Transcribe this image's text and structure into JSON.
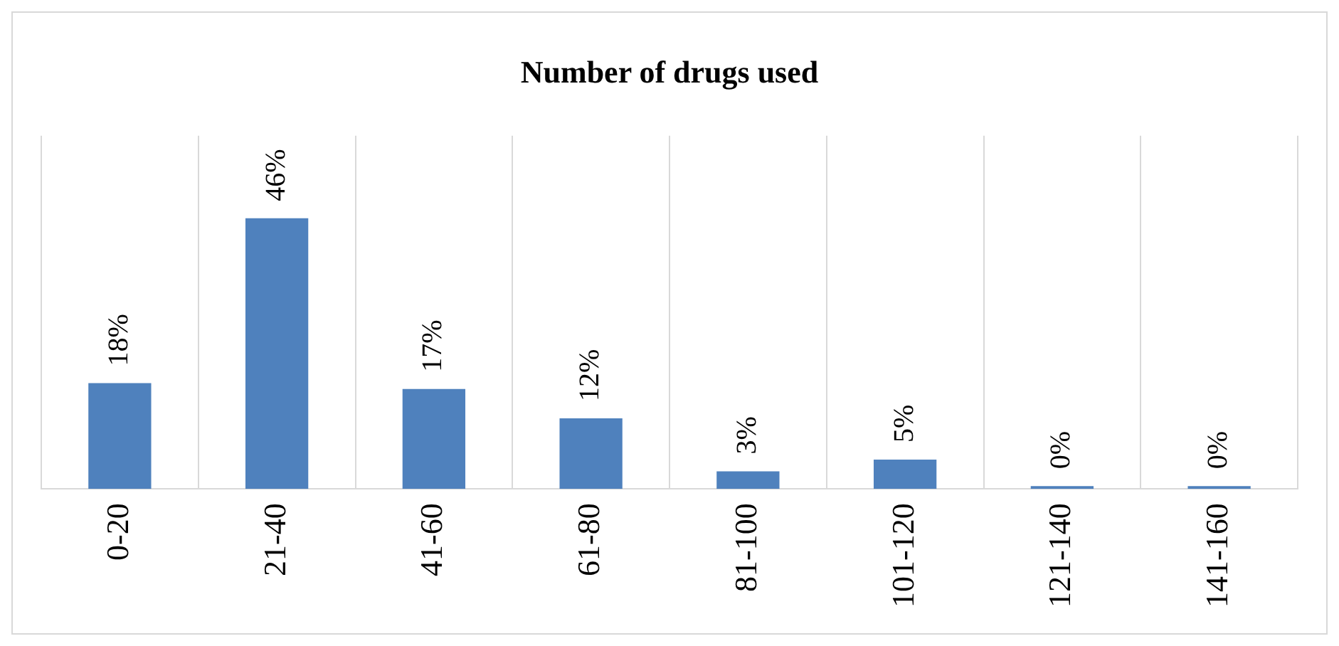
{
  "chart_data": {
    "type": "bar",
    "title": "Number of drugs used",
    "categories": [
      "0-20",
      "21-40",
      "41-60",
      "61-80",
      "81-100",
      "101-120",
      "121-140",
      "141-160"
    ],
    "values": [
      18,
      46,
      17,
      12,
      3,
      5,
      0,
      0
    ],
    "color": "#4f81bd",
    "data_labels": true,
    "value_labels": [
      "18%",
      "46%",
      "17%",
      "12%",
      "3%",
      "5%",
      "0%",
      "0%"
    ],
    "grid": "x",
    "legend": false
  }
}
